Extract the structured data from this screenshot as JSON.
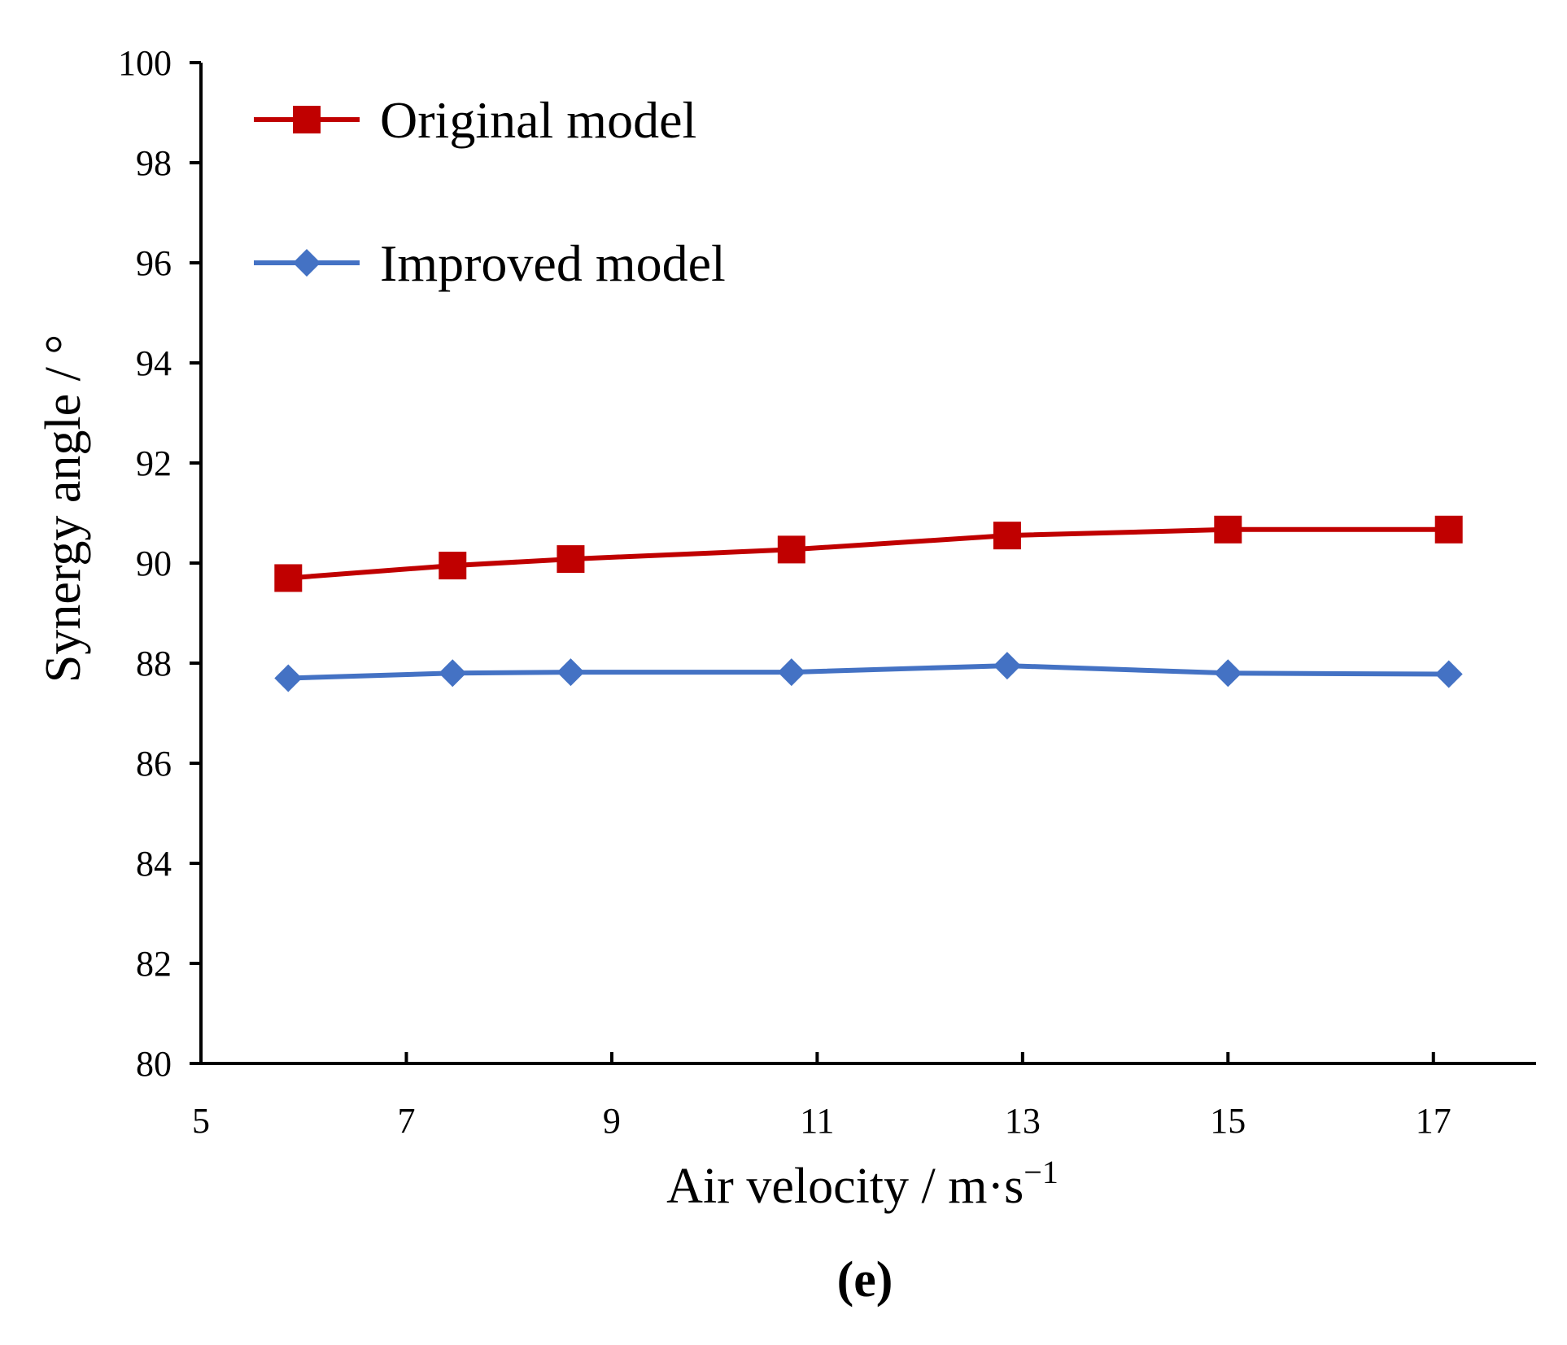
{
  "chart_data": {
    "type": "line",
    "title": "",
    "xlabel": "Air velocity / m·s",
    "xlabel_superscript": "−1",
    "ylabel": "Synergy angle / °",
    "panel_label": "(e)",
    "xlim": [
      5,
      18
    ],
    "ylim": [
      80,
      100
    ],
    "x_ticks": [
      5,
      7,
      9,
      11,
      13,
      15,
      17
    ],
    "y_ticks": [
      80,
      82,
      84,
      86,
      88,
      90,
      92,
      94,
      96,
      98,
      100
    ],
    "legend_position": "top-left",
    "grid": false,
    "x": [
      5.85,
      7.45,
      8.6,
      10.75,
      12.85,
      15.0,
      17.15
    ],
    "series": [
      {
        "name": "Original model",
        "marker": "square",
        "color": "#c00000",
        "values": [
          89.7,
          89.95,
          90.08,
          90.27,
          90.55,
          90.67,
          90.67
        ]
      },
      {
        "name": "Improved model",
        "marker": "diamond",
        "color": "#4472c4",
        "values": [
          87.7,
          87.8,
          87.82,
          87.82,
          87.95,
          87.8,
          87.78
        ]
      }
    ]
  }
}
